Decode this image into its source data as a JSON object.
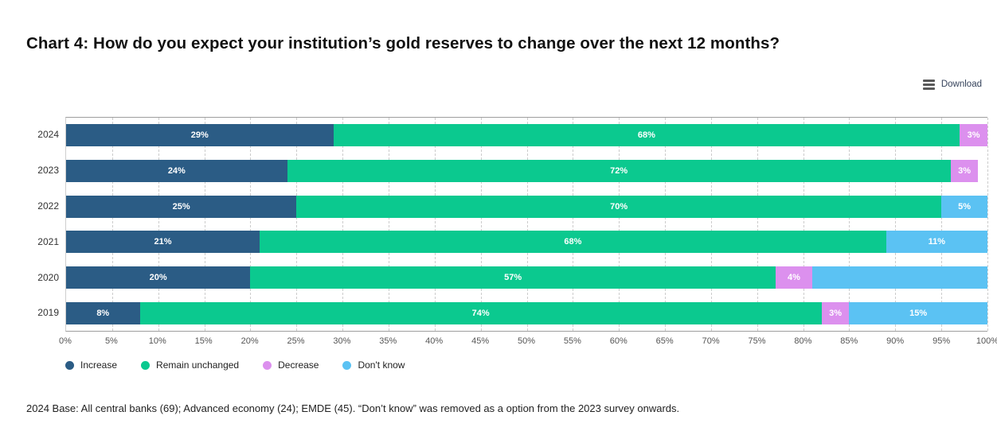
{
  "page": {
    "title": "Chart 4: How do you expect your institution’s gold reserves to change over the next 12 months?",
    "download": {
      "label": "Download"
    },
    "footnote": "2024 Base: All central banks (69); Advanced economy (24); EMDE (45). “Don’t know” was removed as a option from the 2023 survey onwards."
  },
  "chart_data": {
    "type": "bar",
    "orientation": "horizontal",
    "stacked": true,
    "categories": [
      "2024",
      "2023",
      "2022",
      "2021",
      "2020",
      "2019"
    ],
    "series": [
      {
        "name": "Increase",
        "color": "#2B5C85",
        "values": [
          29,
          24,
          25,
          21,
          20,
          8
        ],
        "labels": [
          "29%",
          "24%",
          "25%",
          "21%",
          "20%",
          "8%"
        ]
      },
      {
        "name": "Remain unchanged",
        "color": "#0BC98F",
        "values": [
          68,
          72,
          70,
          68,
          57,
          74
        ],
        "labels": [
          "68%",
          "72%",
          "70%",
          "68%",
          "57%",
          "74%"
        ]
      },
      {
        "name": "Decrease",
        "color": "#DC90EE",
        "values": [
          3,
          3,
          0,
          0,
          4,
          3
        ],
        "labels": [
          "3%",
          "3%",
          null,
          null,
          "4%",
          "3%"
        ]
      },
      {
        "name": "Don't know",
        "color": "#5BC2F3",
        "values": [
          0,
          0,
          5,
          11,
          19,
          15
        ],
        "labels": [
          null,
          null,
          "5%",
          "11%",
          null,
          "15%"
        ]
      }
    ],
    "xlim": [
      0,
      100
    ],
    "x_tick_step": 5,
    "x_ticks": [
      "0%",
      "5%",
      "10%",
      "15%",
      "20%",
      "25%",
      "30%",
      "35%",
      "40%",
      "45%",
      "50%",
      "55%",
      "60%",
      "65%",
      "70%",
      "75%",
      "80%",
      "85%",
      "90%",
      "95%",
      "100%"
    ],
    "grid": "vertical-dashed",
    "legend_position": "bottom-left",
    "bar_label_style": "white percent labels centered in each segment; 2020 Don't know segment unlabeled"
  }
}
